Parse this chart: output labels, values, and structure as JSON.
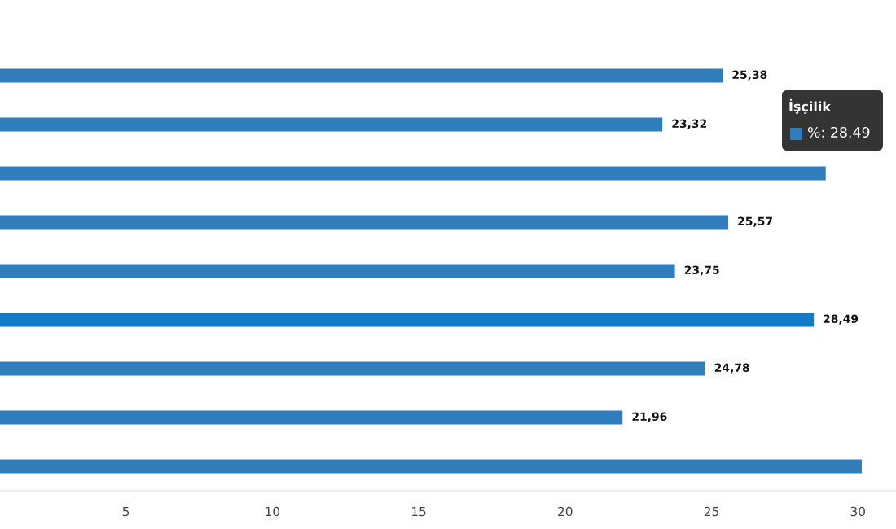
{
  "chart_data": {
    "type": "bar",
    "orientation": "horizontal",
    "categories": [
      null,
      null,
      null,
      null,
      null,
      null,
      null,
      null,
      null
    ],
    "values": [
      25.38,
      23.32,
      28.9,
      25.57,
      23.75,
      28.49,
      24.78,
      21.96,
      30.13
    ],
    "colors": [
      "#317dbb",
      "#317dbb",
      "#317dbb",
      "#317dbb",
      "#317dbb",
      "#1479c6",
      "#317dbb",
      "#317dbb",
      "#317dbb"
    ],
    "value_labels": [
      "25,38",
      "23,32",
      null,
      "25,57",
      "23,75",
      "28,49",
      "24,78",
      "21,96",
      null
    ],
    "annotations": [
      "İşçilik",
      "%: 28.49"
    ],
    "xlim": [
      0.7,
      31.3
    ],
    "xticks": [
      5,
      10,
      15,
      20,
      25,
      30
    ],
    "grid": false,
    "legend": false
  }
}
